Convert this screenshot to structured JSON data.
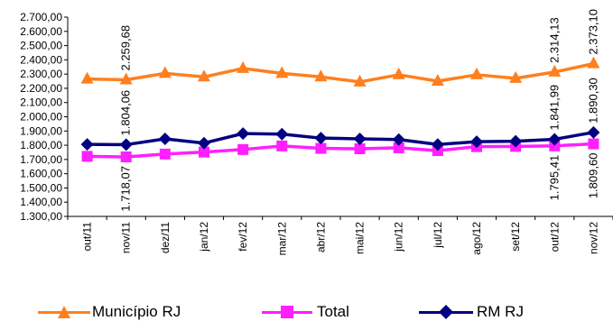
{
  "chart_data": {
    "type": "line",
    "categories": [
      "out/11",
      "nov/11",
      "dez/11",
      "jan/12",
      "fev/12",
      "mar/12",
      "abr/12",
      "mai/12",
      "jun/12",
      "jul/12",
      "ago/12",
      "set/12",
      "out/12",
      "nov/12"
    ],
    "ylim": [
      1300,
      2700
    ],
    "ytick_step": 100,
    "ytick_labels": [
      "1.300,00",
      "1.400,00",
      "1.500,00",
      "1.600,00",
      "1.700,00",
      "1.800,00",
      "1.900,00",
      "2.000,00",
      "2.100,00",
      "2.200,00",
      "2.300,00",
      "2.400,00",
      "2.500,00",
      "2.600,00",
      "2.700,00"
    ],
    "grid": false,
    "legend_position": "bottom",
    "series": [
      {
        "name": "Município RJ",
        "color": "#FF7F1F",
        "marker": "triangle",
        "values": [
          2265,
          2259.68,
          2305,
          2280,
          2340,
          2305,
          2280,
          2245,
          2295,
          2250,
          2295,
          2270,
          2314.13,
          2373.1
        ],
        "data_labels": [
          {
            "index": 1,
            "text": "2.259,68"
          },
          {
            "index": 12,
            "text": "2.314,13"
          },
          {
            "index": 13,
            "text": "2.373,10"
          }
        ]
      },
      {
        "name": "Total",
        "color": "#FF1FFF",
        "marker": "square",
        "values": [
          1722,
          1718.07,
          1738,
          1752,
          1770,
          1795,
          1778,
          1775,
          1782,
          1762,
          1790,
          1792,
          1795.41,
          1809.6
        ],
        "data_labels": [
          {
            "index": 1,
            "text": "1.718,07"
          },
          {
            "index": 12,
            "text": "1.795,41"
          },
          {
            "index": 13,
            "text": "1.809,60"
          }
        ]
      },
      {
        "name": "RM RJ",
        "color": "#000080",
        "marker": "diamond",
        "values": [
          1806,
          1804.06,
          1845,
          1815,
          1882,
          1878,
          1850,
          1845,
          1840,
          1805,
          1825,
          1828,
          1841.99,
          1890.3
        ],
        "data_labels": [
          {
            "index": 1,
            "text": "1.804,06"
          },
          {
            "index": 12,
            "text": "1.841,99"
          },
          {
            "index": 13,
            "text": "1.890,30"
          }
        ]
      }
    ]
  }
}
